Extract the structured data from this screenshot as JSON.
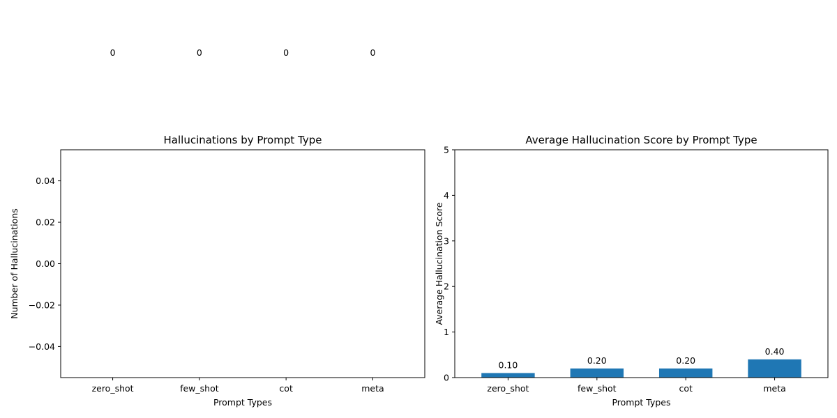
{
  "colors": {
    "bar": "#1f77b4",
    "axis": "#000000",
    "text": "#000000"
  },
  "chart_data": [
    {
      "type": "bar",
      "title": "Hallucinations by Prompt Type",
      "xlabel": "Prompt Types",
      "ylabel": "Number of Hallucinations",
      "categories": [
        "zero_shot",
        "few_shot",
        "cot",
        "meta"
      ],
      "values": [
        0,
        0,
        0,
        0
      ],
      "data_labels": [
        "0",
        "0",
        "0",
        "0"
      ],
      "ylim": [
        -0.055,
        0.055
      ],
      "yticks": [
        -0.04,
        -0.02,
        0.0,
        0.02,
        0.04
      ],
      "ytick_labels": [
        "−0.04",
        "−0.02",
        "0.00",
        "0.02",
        "0.04"
      ],
      "grid": false
    },
    {
      "type": "bar",
      "title": "Average Hallucination Score by Prompt Type",
      "xlabel": "Prompt Types",
      "ylabel": "Average Hallucination Score",
      "categories": [
        "zero_shot",
        "few_shot",
        "cot",
        "meta"
      ],
      "values": [
        0.1,
        0.2,
        0.2,
        0.4
      ],
      "data_labels": [
        "0.10",
        "0.20",
        "0.20",
        "0.40"
      ],
      "ylim": [
        0,
        5
      ],
      "yticks": [
        0,
        1,
        2,
        3,
        4,
        5
      ],
      "ytick_labels": [
        "0",
        "1",
        "2",
        "3",
        "4",
        "5"
      ],
      "grid": false
    }
  ]
}
